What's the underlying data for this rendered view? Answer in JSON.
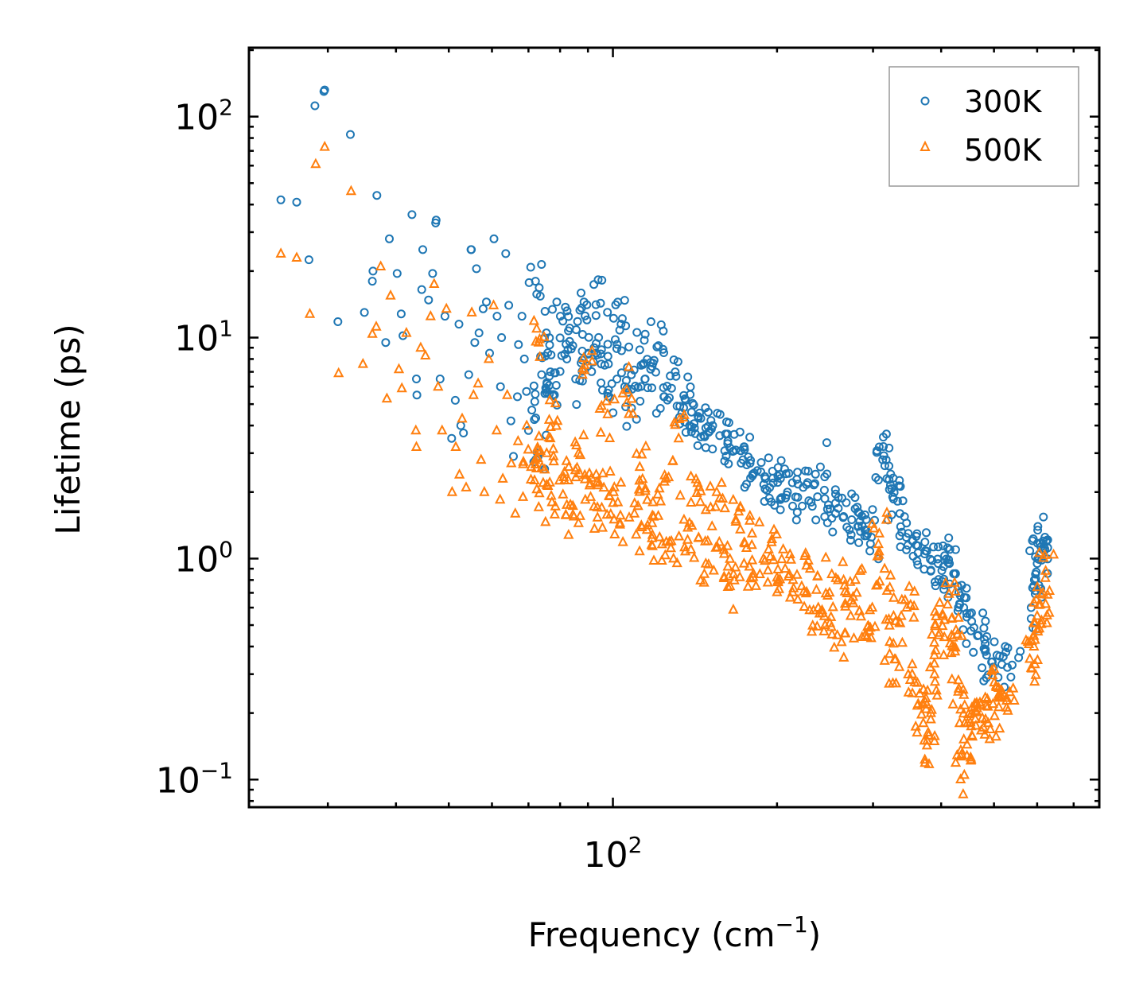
{
  "chart_data": {
    "type": "scatter",
    "title": "",
    "xlabel": "Frequency (cm",
    "xlabel_sup": "−1",
    "xlabel_close": ")",
    "ylabel": "Lifetime (ps)",
    "xscale": "log",
    "yscale": "log",
    "xlim": [
      21.5,
      780
    ],
    "ylim": [
      0.075,
      205
    ],
    "x_ticks": [
      {
        "value": 100,
        "base": "10",
        "exp": "2"
      }
    ],
    "y_ticks": [
      {
        "value": 0.1,
        "base": "10",
        "exp": "−1"
      },
      {
        "value": 1,
        "base": "10",
        "exp": "0"
      },
      {
        "value": 10,
        "base": "10",
        "exp": "1"
      },
      {
        "value": 100,
        "base": "10",
        "exp": "2"
      }
    ],
    "legend": {
      "position": "top-right",
      "entries": [
        {
          "name": "300K",
          "color": "#1f77b4",
          "marker": "circle"
        },
        {
          "name": "500K",
          "color": "#ff7f0e",
          "marker": "triangle"
        }
      ]
    },
    "series": [
      {
        "name": "300K",
        "color": "#1f77b4",
        "marker": "circle",
        "points": [
          [
            24.6,
            42
          ],
          [
            26.3,
            41
          ],
          [
            27.7,
            22.5
          ],
          [
            28.4,
            112
          ],
          [
            29.5,
            130
          ],
          [
            29.6,
            132
          ],
          [
            31.3,
            11.8
          ],
          [
            33.0,
            83
          ],
          [
            35.0,
            13.0
          ],
          [
            36.2,
            18
          ],
          [
            36.3,
            20
          ],
          [
            36.9,
            44
          ],
          [
            38.3,
            9.5
          ],
          [
            38.9,
            28
          ],
          [
            40.2,
            19.5
          ],
          [
            40.9,
            12.8
          ],
          [
            41.2,
            10.2
          ],
          [
            42.8,
            36
          ],
          [
            43.6,
            6.5
          ],
          [
            43.7,
            5.5
          ],
          [
            44.6,
            16.5
          ],
          [
            44.8,
            25
          ],
          [
            45.9,
            14.8
          ],
          [
            46.7,
            19.5
          ],
          [
            47.3,
            33
          ],
          [
            47.4,
            34
          ],
          [
            48.2,
            6.5
          ],
          [
            49.2,
            12.5
          ],
          [
            50.6,
            3.5
          ],
          [
            51.4,
            5.2
          ],
          [
            52.2,
            11.5
          ],
          [
            52.6,
            4.0
          ],
          [
            53.2,
            3.7
          ],
          [
            54.4,
            6.8
          ],
          [
            54.9,
            25
          ],
          [
            55.0,
            25
          ],
          [
            55.8,
            9.5
          ],
          [
            56.2,
            20.5
          ],
          [
            56.8,
            10.5
          ],
          [
            57.8,
            13.5
          ],
          [
            58.6,
            14.5
          ],
          [
            59.4,
            8.5
          ],
          [
            60.5,
            28
          ],
          [
            61.3,
            12.5
          ],
          [
            62.2,
            6
          ],
          [
            62.5,
            10
          ],
          [
            63.6,
            24
          ],
          [
            64.4,
            14
          ],
          [
            65.0,
            4.2
          ],
          [
            65.7,
            2.9
          ],
          [
            66.8,
            5.4
          ],
          [
            67.1,
            9.3
          ],
          [
            68.1,
            12.5
          ],
          [
            68.8,
            8.0
          ],
          [
            70.0,
            3.8
          ],
          [
            71.0,
            4.7
          ],
          [
            72.1,
            18
          ],
          [
            73.3,
            3.0
          ],
          [
            74.0,
            6.8
          ],
          [
            75.5,
            10.5
          ],
          [
            76.8,
            7.0
          ],
          [
            78.1,
            5.5
          ],
          [
            80.1,
            12.5
          ],
          [
            82.3,
            8.0
          ],
          [
            84.4,
            9.2
          ],
          [
            86.9,
            6.4
          ],
          [
            88.5,
            14.5
          ],
          [
            90.2,
            8.5
          ],
          [
            92.4,
            9.0
          ],
          [
            94.9,
            14.3
          ],
          [
            96.6,
            7.5
          ],
          [
            98.2,
            5.8
          ],
          [
            101.0,
            9.8
          ],
          [
            103.5,
            11.5
          ],
          [
            105.1,
            6.0
          ],
          [
            108.2,
            4.8
          ],
          [
            112.0,
            8.8
          ],
          [
            114.6,
            6.5
          ],
          [
            117.3,
            7.2
          ],
          [
            121.2,
            9.2
          ],
          [
            124.0,
            5.4
          ],
          [
            127.4,
            6.7
          ],
          [
            131.1,
            4.9
          ],
          [
            136.0,
            5.2
          ],
          [
            139.4,
            4.6
          ],
          [
            143.3,
            4.4
          ],
          [
            148.0,
            3.9
          ],
          [
            152.4,
            4.0
          ],
          [
            157.0,
            3.6
          ],
          [
            162.5,
            3.4
          ],
          [
            168.0,
            3.1
          ],
          [
            173.2,
            2.8
          ],
          [
            178.5,
            2.7
          ],
          [
            184.0,
            2.5
          ],
          [
            190.4,
            2.3
          ],
          [
            196.8,
            2.2
          ],
          [
            202.5,
            2.4
          ],
          [
            209.0,
            2.0
          ],
          [
            216.3,
            1.9
          ],
          [
            223.4,
            2.1
          ],
          [
            231.0,
            1.8
          ],
          [
            240.2,
            2.6
          ],
          [
            248.5,
            1.75
          ],
          [
            256.0,
            1.6
          ],
          [
            265.0,
            1.55
          ],
          [
            274.2,
            1.5
          ],
          [
            282.0,
            1.4
          ],
          [
            291.0,
            1.35
          ],
          [
            298.0,
            1.25
          ],
          [
            308.0,
            3.2
          ],
          [
            312.5,
            2.8
          ],
          [
            318.0,
            2.3
          ],
          [
            326.0,
            1.9
          ],
          [
            336.0,
            1.6
          ],
          [
            348.0,
            1.3
          ],
          [
            360.0,
            1.15
          ],
          [
            373.0,
            1.05
          ],
          [
            385.0,
            0.98
          ],
          [
            395.0,
            0.95
          ],
          [
            404.0,
            0.92
          ],
          [
            415.0,
            1.1
          ],
          [
            424.0,
            0.85
          ],
          [
            431.0,
            0.7
          ],
          [
            440.0,
            0.6
          ],
          [
            455.0,
            0.52
          ],
          [
            468.0,
            0.45
          ],
          [
            482.0,
            0.38
          ],
          [
            495.0,
            0.34
          ],
          [
            520.0,
            0.36
          ],
          [
            540.0,
            0.33
          ],
          [
            585.0,
            0.6
          ],
          [
            593.0,
            0.8
          ],
          [
            600.0,
            0.95
          ],
          [
            608.0,
            1.05
          ],
          [
            614.0,
            1.1
          ],
          [
            620.0,
            1.25
          ]
        ]
      },
      {
        "name": "500K",
        "color": "#ff7f0e",
        "marker": "triangle",
        "points": [
          [
            24.6,
            24
          ],
          [
            26.3,
            23
          ],
          [
            27.8,
            12.8
          ],
          [
            28.5,
            61
          ],
          [
            29.6,
            73
          ],
          [
            31.4,
            6.9
          ],
          [
            33.1,
            46
          ],
          [
            34.8,
            7.6
          ],
          [
            36.2,
            10.4
          ],
          [
            36.8,
            11.2
          ],
          [
            37.5,
            21
          ],
          [
            38.5,
            5.3
          ],
          [
            39.1,
            15.5
          ],
          [
            40.5,
            7.2
          ],
          [
            41.0,
            5.9
          ],
          [
            41.8,
            10.5
          ],
          [
            43.5,
            3.8
          ],
          [
            43.6,
            3.2
          ],
          [
            44.4,
            9.0
          ],
          [
            45.3,
            8.3
          ],
          [
            46.3,
            12.5
          ],
          [
            47.0,
            17.5
          ],
          [
            47.8,
            6.0
          ],
          [
            48.6,
            3.8
          ],
          [
            49.5,
            13.5
          ],
          [
            50.7,
            2.0
          ],
          [
            51.5,
            3.2
          ],
          [
            52.3,
            2.4
          ],
          [
            52.9,
            4.3
          ],
          [
            53.8,
            2.1
          ],
          [
            55.1,
            13
          ],
          [
            55.5,
            5.5
          ],
          [
            56.6,
            6.2
          ],
          [
            57.3,
            2.8
          ],
          [
            58.1,
            2.0
          ],
          [
            59.2,
            8.0
          ],
          [
            60.4,
            14
          ],
          [
            61.2,
            3.8
          ],
          [
            62.1,
            1.85
          ],
          [
            62.8,
            2.3
          ],
          [
            64.0,
            5.5
          ],
          [
            65.1,
            2.7
          ],
          [
            66.2,
            1.6
          ],
          [
            67.0,
            3.4
          ],
          [
            68.4,
            1.9
          ],
          [
            69.5,
            4.0
          ],
          [
            70.8,
            2.6
          ],
          [
            72.0,
            2.8
          ],
          [
            73.1,
            9.5
          ],
          [
            74.5,
            2.2
          ],
          [
            75.6,
            3.0
          ],
          [
            77.3,
            1.8
          ],
          [
            79.1,
            4.2
          ],
          [
            81.0,
            1.95
          ],
          [
            83.0,
            2.6
          ],
          [
            84.8,
            1.55
          ],
          [
            86.5,
            3.0
          ],
          [
            88.7,
            7.5
          ],
          [
            91.0,
            1.9
          ],
          [
            93.2,
            2.4
          ],
          [
            95.4,
            1.7
          ],
          [
            97.8,
            4.5
          ],
          [
            100.3,
            2.0
          ],
          [
            103.0,
            1.45
          ],
          [
            106.0,
            5.8
          ],
          [
            109.5,
            1.6
          ],
          [
            112.0,
            2.6
          ],
          [
            115.5,
            1.35
          ],
          [
            118.4,
            1.8
          ],
          [
            121.8,
            1.25
          ],
          [
            125.0,
            2.3
          ],
          [
            128.0,
            1.2
          ],
          [
            132.0,
            3.5
          ],
          [
            135.0,
            1.5
          ],
          [
            139.0,
            1.1
          ],
          [
            143.0,
            2.2
          ],
          [
            148.0,
            0.95
          ],
          [
            152.0,
            1.4
          ],
          [
            155.0,
            2.0
          ],
          [
            160.0,
            1.05
          ],
          [
            164.0,
            0.75
          ],
          [
            168.0,
            1.5
          ],
          [
            174.0,
            0.95
          ],
          [
            180.0,
            1.3
          ],
          [
            186.0,
            0.85
          ],
          [
            193.0,
            1.1
          ],
          [
            200.0,
            0.82
          ],
          [
            207.0,
            0.9
          ],
          [
            214.0,
            0.8
          ],
          [
            222.0,
            0.75
          ],
          [
            230.0,
            0.9
          ],
          [
            238.0,
            0.6
          ],
          [
            245.0,
            0.5
          ],
          [
            252.0,
            0.85
          ],
          [
            258.0,
            0.45
          ],
          [
            265.0,
            0.8
          ],
          [
            273.0,
            0.55
          ],
          [
            280.0,
            0.7
          ],
          [
            290.0,
            0.45
          ],
          [
            299.0,
            0.6
          ],
          [
            308.0,
            1.3
          ],
          [
            315.0,
            0.9
          ],
          [
            322.0,
            0.42
          ],
          [
            330.0,
            0.35
          ],
          [
            338.0,
            0.55
          ],
          [
            346.0,
            0.6
          ],
          [
            354.0,
            0.3
          ],
          [
            363.0,
            0.22
          ],
          [
            371.0,
            0.18
          ],
          [
            377.0,
            0.15
          ],
          [
            383.0,
            0.2
          ],
          [
            389.0,
            0.3
          ],
          [
            396.0,
            0.45
          ],
          [
            403.0,
            0.55
          ],
          [
            411.0,
            0.62
          ],
          [
            418.0,
            0.45
          ],
          [
            424.0,
            0.38
          ],
          [
            430.0,
            0.25
          ],
          [
            436.0,
            0.13
          ],
          [
            441.0,
            0.105
          ],
          [
            447.0,
            0.18
          ],
          [
            455.0,
            0.2
          ],
          [
            465.0,
            0.22
          ],
          [
            476.0,
            0.19
          ],
          [
            488.0,
            0.18
          ],
          [
            498.0,
            0.22
          ],
          [
            510.0,
            0.26
          ],
          [
            522.0,
            0.24
          ],
          [
            530.0,
            0.205
          ],
          [
            585.0,
            0.32
          ],
          [
            592.0,
            0.4
          ],
          [
            600.0,
            0.55
          ],
          [
            608.0,
            0.62
          ],
          [
            615.0,
            0.7
          ],
          [
            622.0,
            0.88
          ]
        ]
      }
    ]
  }
}
